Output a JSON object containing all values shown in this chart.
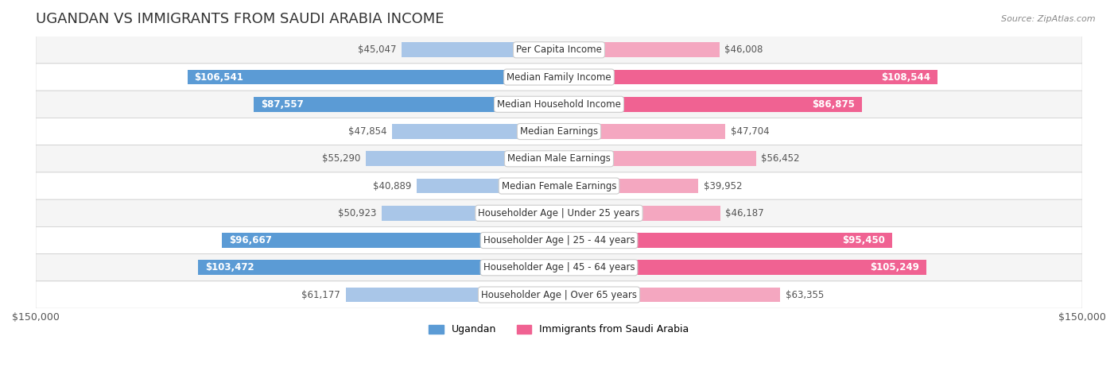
{
  "title": "UGANDAN VS IMMIGRANTS FROM SAUDI ARABIA INCOME",
  "source": "Source: ZipAtlas.com",
  "categories": [
    "Per Capita Income",
    "Median Family Income",
    "Median Household Income",
    "Median Earnings",
    "Median Male Earnings",
    "Median Female Earnings",
    "Householder Age | Under 25 years",
    "Householder Age | 25 - 44 years",
    "Householder Age | 45 - 64 years",
    "Householder Age | Over 65 years"
  ],
  "ugandan_values": [
    45047,
    106541,
    87557,
    47854,
    55290,
    40889,
    50923,
    96667,
    103472,
    61177
  ],
  "saudi_values": [
    46008,
    108544,
    86875,
    47704,
    56452,
    39952,
    46187,
    95450,
    105249,
    63355
  ],
  "ugandan_labels": [
    "$45,047",
    "$106,541",
    "$87,557",
    "$47,854",
    "$55,290",
    "$40,889",
    "$50,923",
    "$96,667",
    "$103,472",
    "$61,177"
  ],
  "saudi_labels": [
    "$46,008",
    "$108,544",
    "$86,875",
    "$47,704",
    "$56,452",
    "$39,952",
    "$46,187",
    "$95,450",
    "$105,249",
    "$63,355"
  ],
  "ugandan_color_dark": "#5b9bd5",
  "ugandan_color_light": "#a9c6e8",
  "saudi_color_dark": "#f06292",
  "saudi_color_light": "#f4a7c0",
  "max_val": 150000,
  "bar_height": 0.55,
  "background_color": "#ffffff",
  "row_bg_color": "#f0f0f0",
  "row_alt_color": "#ffffff",
  "label_fontsize": 8.5,
  "category_fontsize": 8.5,
  "title_fontsize": 13
}
